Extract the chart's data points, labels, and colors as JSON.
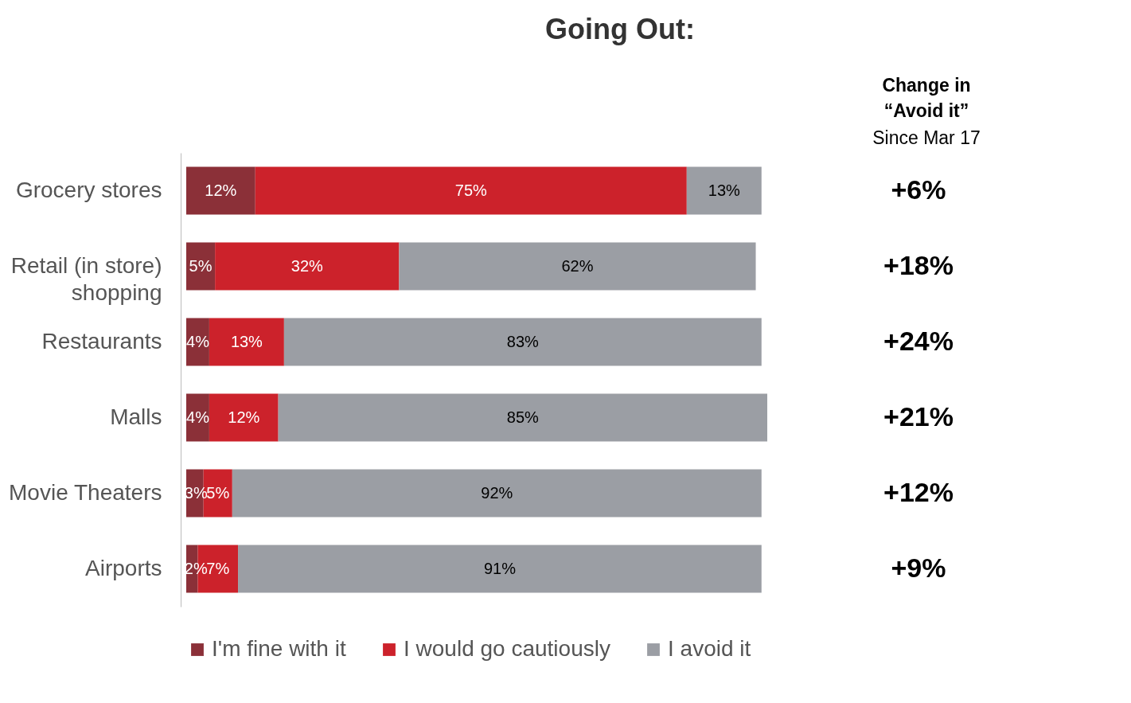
{
  "chart_data": {
    "type": "bar",
    "orientation": "horizontal",
    "stacked": true,
    "title": "Going Out:",
    "categories": [
      "Grocery stores",
      "Retail (in store)\nshopping",
      "Restaurants",
      "Malls",
      "Movie Theaters",
      "Airports"
    ],
    "series": [
      {
        "name": "I'm fine with it",
        "color": "#8b3038",
        "values": [
          12,
          5,
          4,
          4,
          3,
          2
        ],
        "value_labels": [
          "12%",
          "5%",
          "4%",
          "4%",
          "3%",
          "2%"
        ]
      },
      {
        "name": "I would go cautiously",
        "color": "#cc222b",
        "values": [
          75,
          32,
          13,
          12,
          5,
          7
        ],
        "value_labels": [
          "75%",
          "32%",
          "13%",
          "12%",
          "5%",
          "7%"
        ]
      },
      {
        "name": "I avoid it",
        "color": "#9b9ea4",
        "values": [
          13,
          62,
          83,
          85,
          92,
          91
        ],
        "value_labels": [
          "13%",
          "62%",
          "83%",
          "85%",
          "92%",
          "91%"
        ]
      }
    ],
    "annotations": [
      "Change in\n“Avoid it”",
      "Since  Mar 17",
      "+6%",
      "+18%",
      "+24%",
      "+21%",
      "+12%",
      "+9%"
    ],
    "legend": "bottom",
    "tick_labels": "y",
    "grid": false
  }
}
